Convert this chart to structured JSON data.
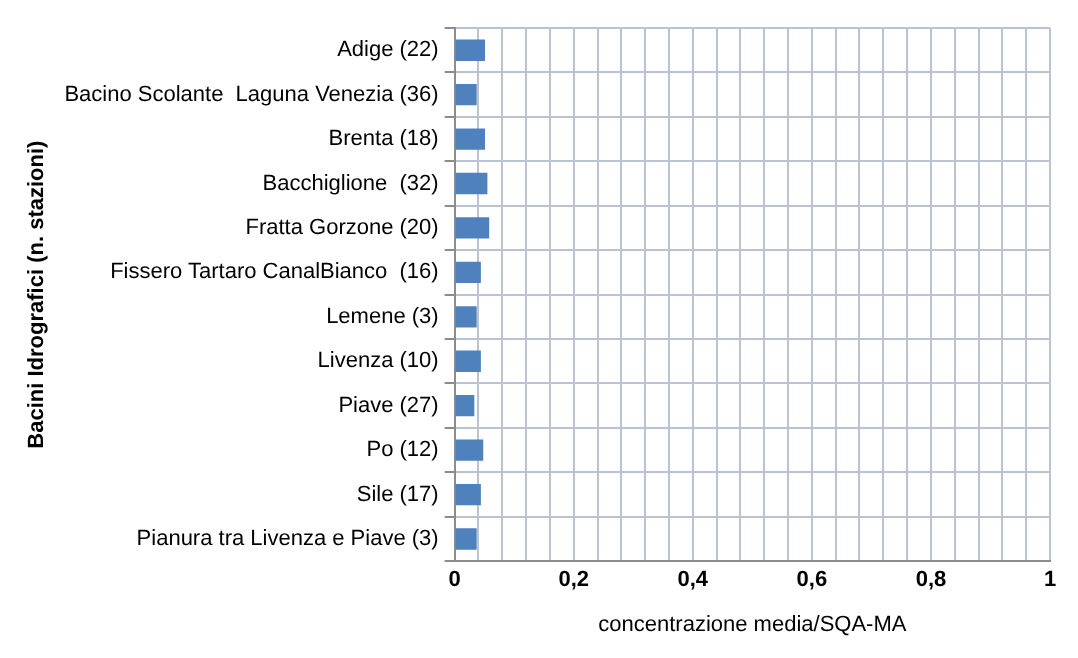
{
  "chart_data": {
    "type": "bar",
    "orientation": "horizontal",
    "xlabel": "concentrazione media/SQA-MA",
    "ylabel": "Bacini Idrografici (n. stazioni)",
    "categories": [
      "Adige (22)",
      "Bacino Scolante  Laguna Venezia (36)",
      "Brenta (18)",
      "Bacchiglione  (32)",
      "Fratta Gorzone (20)",
      "Fissero Tartaro CanalBianco  (16)",
      "Lemene (3)",
      "Livenza (10)",
      "Piave (27)",
      "Po (12)",
      "Sile (17)",
      "Pianura tra Livenza e Piave (3)"
    ],
    "values": [
      0.051,
      0.037,
      0.051,
      0.055,
      0.058,
      0.044,
      0.037,
      0.044,
      0.033,
      0.048,
      0.044,
      0.037
    ],
    "color": "#4f81bd",
    "xlim": [
      0,
      1
    ],
    "xticks": [
      0,
      {
        "value": 0.04,
        "label": null
      },
      {
        "value": 0.08,
        "label": null
      },
      {
        "value": 0.12,
        "label": null
      },
      {
        "value": 0.16,
        "label": null
      },
      {
        "value": 0.2,
        "label": "0,2"
      },
      {
        "value": 0.24,
        "label": null
      },
      {
        "value": 0.28,
        "label": null
      },
      {
        "value": 0.32,
        "label": null
      },
      {
        "value": 0.36,
        "label": null
      },
      {
        "value": 0.4,
        "label": "0,4"
      },
      {
        "value": 0.44,
        "label": null
      },
      {
        "value": 0.48,
        "label": null
      },
      {
        "value": 0.52,
        "label": null
      },
      {
        "value": 0.56,
        "label": null
      },
      {
        "value": 0.6,
        "label": "0,6"
      },
      {
        "value": 0.64,
        "label": null
      },
      {
        "value": 0.68,
        "label": null
      },
      {
        "value": 0.72,
        "label": null
      },
      {
        "value": 0.76,
        "label": null
      },
      {
        "value": 0.8,
        "label": "0,8"
      },
      {
        "value": 0.84,
        "label": null
      },
      {
        "value": 0.88,
        "label": null
      },
      {
        "value": 0.92,
        "label": null
      },
      {
        "value": 0.96,
        "label": null
      },
      1
    ],
    "grid": true,
    "legend": false
  }
}
